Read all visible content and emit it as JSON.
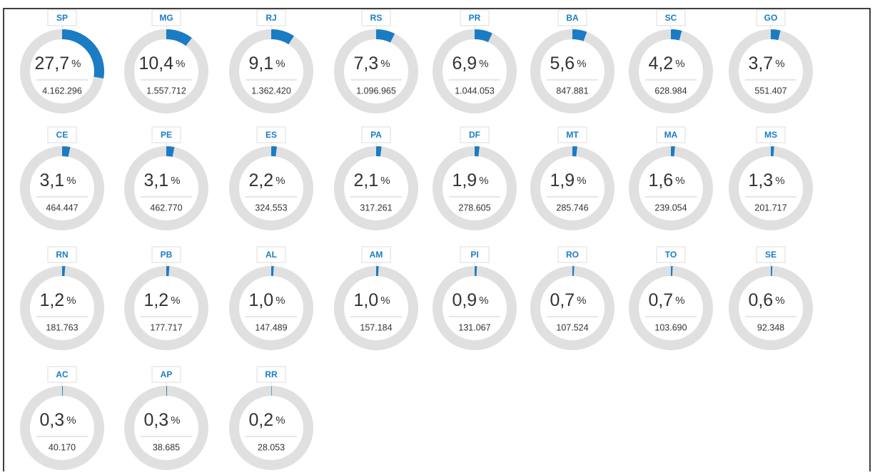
{
  "chart_data": {
    "type": "gauge",
    "categories": [
      "SP",
      "MG",
      "RJ",
      "RS",
      "PR",
      "BA",
      "SC",
      "GO",
      "CE",
      "PE",
      "ES",
      "PA",
      "DF",
      "MT",
      "MA",
      "MS",
      "RN",
      "PB",
      "AL",
      "AM",
      "PI",
      "RO",
      "TO",
      "SE",
      "AC",
      "AP",
      "RR"
    ],
    "values": [
      27.7,
      10.4,
      9.1,
      7.3,
      6.9,
      5.6,
      4.2,
      3.7,
      3.1,
      3.1,
      2.2,
      2.1,
      1.9,
      1.9,
      1.6,
      1.3,
      1.2,
      1.2,
      1.0,
      1.0,
      0.9,
      0.7,
      0.7,
      0.6,
      0.3,
      0.3,
      0.2
    ],
    "value_labels": [
      "27,7",
      "10,4",
      "9,1",
      "7,3",
      "6,9",
      "5,6",
      "4,2",
      "3,7",
      "3,1",
      "3,1",
      "2,2",
      "2,1",
      "1,9",
      "1,9",
      "1,6",
      "1,3",
      "1,2",
      "1,2",
      "1,0",
      "1,0",
      "0,9",
      "0,7",
      "0,7",
      "0,6",
      "0,3",
      "0,3",
      "0,2"
    ],
    "unit": "%",
    "counts": [
      "4.162.296",
      "1.557.712",
      "1.362.420",
      "1.096.965",
      "1.044.053",
      "847.881",
      "628.984",
      "551.407",
      "464.447",
      "462.770",
      "324.553",
      "317.261",
      "278.605",
      "285.746",
      "239.054",
      "201.717",
      "181.763",
      "177.717",
      "147.489",
      "157.184",
      "131.067",
      "107.524",
      "103.690",
      "92.348",
      "40.170",
      "38.685",
      "28.053"
    ],
    "ylim": [
      0,
      100
    ],
    "color": "#1a7cc4",
    "track_color": "#e0e0e0"
  }
}
